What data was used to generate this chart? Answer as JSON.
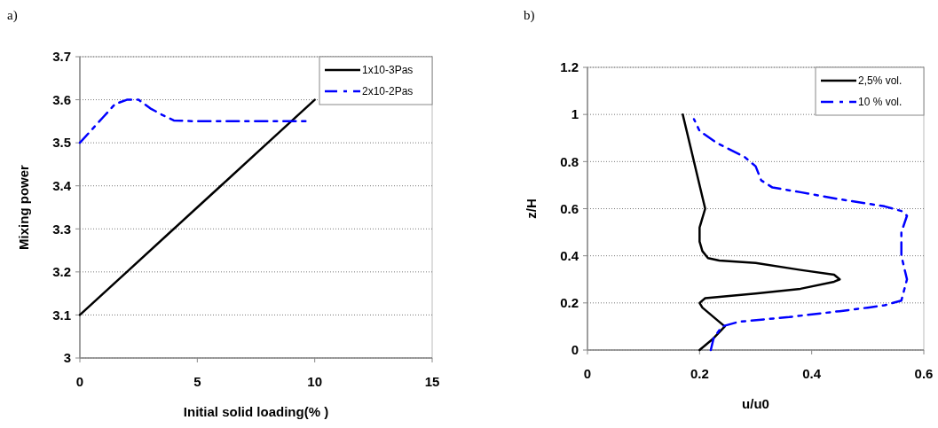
{
  "chart_data": [
    {
      "type": "line",
      "title": "a)",
      "xlabel": "Initial solid loading(% )",
      "ylabel": "Mixing power",
      "xlim": [
        0,
        15
      ],
      "xticks": [
        0,
        5,
        10,
        15
      ],
      "ylim": [
        3,
        3.7
      ],
      "yticks": [
        {
          "value": 3,
          "label": "3"
        },
        3.1,
        3.2,
        3.3,
        3.4,
        3.5,
        3.6,
        3.7
      ],
      "grid": "y",
      "legend": "top right",
      "series": [
        {
          "name": "1x10-3Pas",
          "color": "#000000",
          "line_style": "solid",
          "x": [
            0,
            2,
            4,
            5,
            6,
            8,
            10
          ],
          "values": [
            3.1,
            3.2,
            3.3,
            3.35,
            3.4,
            3.5,
            3.6
          ]
        },
        {
          "name": "2x10-2Pas",
          "color": "#0000ff",
          "line_style": "dashed",
          "x": [
            0,
            0.5,
            1,
            1.5,
            2,
            2.5,
            3,
            3.5,
            4,
            5,
            7,
            9.7
          ],
          "values": [
            3.5,
            3.53,
            3.56,
            3.59,
            3.6,
            3.6,
            3.58,
            3.565,
            3.552,
            3.55,
            3.55,
            3.55
          ]
        }
      ]
    },
    {
      "type": "line",
      "title": "b)",
      "xlabel": "u/u0",
      "ylabel": "z/H",
      "xlim": [
        0,
        0.6
      ],
      "xticks": [
        0,
        0.2,
        0.4,
        0.6
      ],
      "ylim": [
        0,
        1.2
      ],
      "yticks": [
        0,
        0.2,
        0.4,
        0.6,
        0.8,
        1,
        1.2
      ],
      "grid": "y",
      "legend": "top right",
      "series": [
        {
          "name": "2,5% vol.",
          "color": "#000000",
          "line_style": "solid",
          "x": [
            0.2,
            0.225,
            0.245,
            0.235,
            0.205,
            0.2,
            0.21,
            0.3,
            0.38,
            0.44,
            0.45,
            0.44,
            0.38,
            0.3,
            0.235,
            0.215,
            0.205,
            0.2,
            0.2,
            0.205,
            0.21,
            0.2,
            0.185,
            0.17
          ],
          "values": [
            0,
            0.05,
            0.1,
            0.12,
            0.18,
            0.2,
            0.22,
            0.24,
            0.26,
            0.29,
            0.3,
            0.32,
            0.34,
            0.37,
            0.38,
            0.39,
            0.42,
            0.46,
            0.52,
            0.56,
            0.6,
            0.7,
            0.85,
            1
          ]
        },
        {
          "name": "10 % vol.",
          "color": "#0000ff",
          "line_style": "dashed",
          "x": [
            0.22,
            0.225,
            0.24,
            0.27,
            0.36,
            0.45,
            0.5,
            0.53,
            0.56,
            0.57,
            0.56,
            0.56,
            0.57,
            0.56,
            0.53,
            0.45,
            0.38,
            0.33,
            0.31,
            0.3,
            0.28,
            0.23,
            0.2,
            0.19
          ],
          "values": [
            0,
            0.05,
            0.1,
            0.12,
            0.14,
            0.165,
            0.18,
            0.19,
            0.21,
            0.3,
            0.4,
            0.5,
            0.57,
            0.59,
            0.61,
            0.64,
            0.67,
            0.69,
            0.72,
            0.78,
            0.82,
            0.88,
            0.93,
            0.98
          ]
        }
      ]
    }
  ]
}
